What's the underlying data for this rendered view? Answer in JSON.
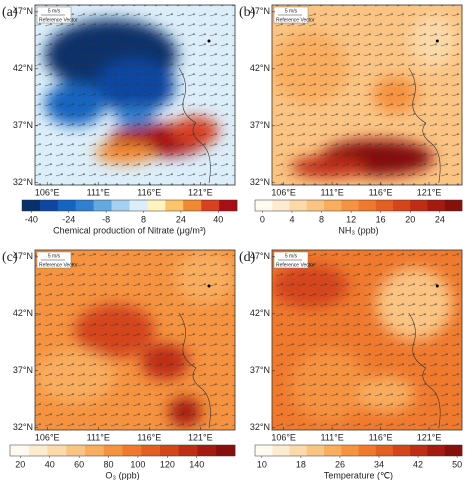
{
  "map": {
    "xlim": [
      104.8,
      124.4
    ],
    "ylim": [
      31.8,
      47.6
    ],
    "xticks": [
      {
        "value": 106,
        "label": "106°E"
      },
      {
        "value": 111,
        "label": "111°E"
      },
      {
        "value": 116,
        "label": "116°E"
      },
      {
        "value": 121,
        "label": "121°E"
      }
    ],
    "yticks": [
      {
        "value": 47,
        "label": "47°N"
      },
      {
        "value": 42,
        "label": "42°N"
      },
      {
        "value": 37,
        "label": "37°N"
      },
      {
        "value": 32,
        "label": "32°N"
      }
    ]
  },
  "reference_vector": {
    "speed": "5 m/s",
    "label": "Reference Vector"
  },
  "panels": [
    {
      "label": "(a)",
      "colorbar": {
        "title": "Chemical production of Nitrate (μg/m³)",
        "lim": [
          -44,
          48
        ],
        "ticks": [
          -40,
          -24,
          -8,
          8,
          24,
          40
        ],
        "colors": [
          "#08306b",
          "#0d47a1",
          "#1565c0",
          "#2f80d0",
          "#64a8e0",
          "#a6d0f0",
          "#dceefa",
          "#fff3c0",
          "#fdc46a",
          "#f08a30",
          "#d84020",
          "#a50f15"
        ]
      }
    },
    {
      "label": "(b)",
      "colorbar": {
        "title": "NH₃ (ppb)",
        "lim": [
          -1,
          27
        ],
        "ticks": [
          0,
          4,
          8,
          12,
          16,
          20,
          24
        ],
        "colors": [
          "#fffaf0",
          "#fdebd0",
          "#fcd9a8",
          "#fbc483",
          "#f9ad5e",
          "#f59340",
          "#ef7a2e",
          "#e35f22",
          "#d4451a",
          "#bf2d14",
          "#a51b10",
          "#85100c"
        ]
      }
    },
    {
      "label": "(c)",
      "colorbar": {
        "title": "O₃ (ppb)",
        "lim": [
          13,
          166
        ],
        "ticks": [
          20,
          40,
          60,
          80,
          100,
          120,
          140
        ],
        "colors": [
          "#fffaf0",
          "#fdebd0",
          "#fcd9a8",
          "#fbc483",
          "#f9ad5e",
          "#f59340",
          "#ef7a2e",
          "#e35f22",
          "#d4451a",
          "#bf2d14",
          "#a51b10",
          "#85100c"
        ]
      }
    },
    {
      "label": "(d)",
      "colorbar": {
        "title": "Temperature (℃)",
        "lim": [
          8.6,
          51
        ],
        "ticks": [
          10,
          18,
          26,
          34,
          42,
          50
        ],
        "colors": [
          "#fffaf0",
          "#fdebd0",
          "#fcd9a8",
          "#fbc483",
          "#f9ad5e",
          "#f59340",
          "#ef7a2e",
          "#e35f22",
          "#d4451a",
          "#bf2d14",
          "#a51b10",
          "#85100c"
        ]
      }
    }
  ]
}
